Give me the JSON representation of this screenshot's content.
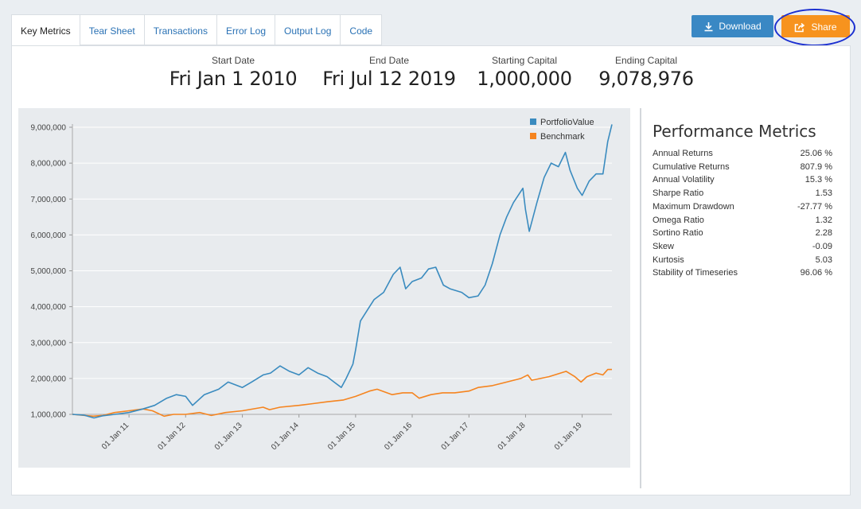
{
  "tabs": [
    {
      "label": "Key Metrics",
      "active": true
    },
    {
      "label": "Tear Sheet"
    },
    {
      "label": "Transactions"
    },
    {
      "label": "Error Log"
    },
    {
      "label": "Output Log"
    },
    {
      "label": "Code"
    }
  ],
  "buttons": {
    "download": "Download",
    "share": "Share"
  },
  "stats": [
    {
      "label": "Start Date",
      "value": "Fri Jan 1 2010"
    },
    {
      "label": "End Date",
      "value": "Fri Jul 12 2019"
    },
    {
      "label": "Starting Capital",
      "value": "1,000,000"
    },
    {
      "label": "Ending Capital",
      "value": "9,078,976"
    }
  ],
  "metrics": {
    "title": "Performance Metrics",
    "rows": [
      {
        "label": "Annual Returns",
        "value": "25.06 %"
      },
      {
        "label": "Cumulative Returns",
        "value": "807.9 %"
      },
      {
        "label": "Annual Volatility",
        "value": "15.3 %"
      },
      {
        "label": "Sharpe Ratio",
        "value": "1.53"
      },
      {
        "label": "Maximum Drawdown",
        "value": "-27.77 %"
      },
      {
        "label": "Omega Ratio",
        "value": "1.32"
      },
      {
        "label": "Sortino Ratio",
        "value": "2.28"
      },
      {
        "label": "Skew",
        "value": "-0.09"
      },
      {
        "label": "Kurtosis",
        "value": "5.03"
      },
      {
        "label": "Stability of Timeseries",
        "value": "96.06 %"
      }
    ]
  },
  "colors": {
    "portfolio": "#3a8bbf",
    "benchmark": "#f5841f",
    "share": "#f7931e",
    "download": "#3a88c4",
    "highlight": "#1b2fd0"
  },
  "icons": {
    "download": "download-icon",
    "share": "share-icon"
  },
  "chart_data": {
    "type": "line",
    "title": "",
    "xlabel": "",
    "ylabel": "",
    "xlim": [
      "2010-01-01",
      "2019-07-12"
    ],
    "ylim": [
      1000000,
      9000000
    ],
    "yticks": [
      1000000,
      2000000,
      3000000,
      4000000,
      5000000,
      6000000,
      7000000,
      8000000,
      9000000
    ],
    "ytick_labels": [
      "1,000,000",
      "2,000,000",
      "3,000,000",
      "4,000,000",
      "5,000,000",
      "6,000,000",
      "7,000,000",
      "8,000,000",
      "9,000,000"
    ],
    "xticks": [
      "2011-01-01",
      "2012-01-01",
      "2013-01-01",
      "2014-01-01",
      "2015-01-01",
      "2016-01-01",
      "2017-01-01",
      "2018-01-01",
      "2019-01-01"
    ],
    "xtick_labels": [
      "01 Jan 11",
      "01 Jan 12",
      "01 Jan 13",
      "01 Jan 14",
      "01 Jan 15",
      "01 Jan 16",
      "01 Jan 17",
      "01 Jan 18",
      "01 Jan 19"
    ],
    "grid": true,
    "legend": "top-right",
    "series": [
      {
        "name": "PortfolioValue",
        "color": "#3a8bbf",
        "points": [
          [
            "2010-01-01",
            1000000
          ],
          [
            "2010-03-15",
            980000
          ],
          [
            "2010-05-20",
            900000
          ],
          [
            "2010-07-15",
            960000
          ],
          [
            "2010-10-01",
            1000000
          ],
          [
            "2011-01-01",
            1050000
          ],
          [
            "2011-04-01",
            1150000
          ],
          [
            "2011-06-15",
            1250000
          ],
          [
            "2011-09-01",
            1450000
          ],
          [
            "2011-11-01",
            1550000
          ],
          [
            "2012-01-01",
            1500000
          ],
          [
            "2012-02-15",
            1250000
          ],
          [
            "2012-05-01",
            1550000
          ],
          [
            "2012-08-01",
            1700000
          ],
          [
            "2012-10-01",
            1900000
          ],
          [
            "2013-01-01",
            1750000
          ],
          [
            "2013-03-01",
            1900000
          ],
          [
            "2013-05-15",
            2100000
          ],
          [
            "2013-07-01",
            2150000
          ],
          [
            "2013-09-01",
            2350000
          ],
          [
            "2013-11-01",
            2200000
          ],
          [
            "2014-01-01",
            2100000
          ],
          [
            "2014-03-01",
            2300000
          ],
          [
            "2014-05-01",
            2150000
          ],
          [
            "2014-07-01",
            2050000
          ],
          [
            "2014-08-15",
            1900000
          ],
          [
            "2014-10-01",
            1750000
          ],
          [
            "2014-11-01",
            2000000
          ],
          [
            "2014-12-15",
            2400000
          ],
          [
            "2015-01-01",
            2800000
          ],
          [
            "2015-02-01",
            3600000
          ],
          [
            "2015-04-01",
            4000000
          ],
          [
            "2015-05-01",
            4200000
          ],
          [
            "2015-07-01",
            4400000
          ],
          [
            "2015-09-01",
            4900000
          ],
          [
            "2015-10-15",
            5100000
          ],
          [
            "2015-11-20",
            4500000
          ],
          [
            "2016-01-01",
            4700000
          ],
          [
            "2016-03-01",
            4800000
          ],
          [
            "2016-04-15",
            5050000
          ],
          [
            "2016-06-01",
            5100000
          ],
          [
            "2016-07-20",
            4600000
          ],
          [
            "2016-09-01",
            4500000
          ],
          [
            "2016-11-15",
            4400000
          ],
          [
            "2017-01-01",
            4250000
          ],
          [
            "2017-03-01",
            4300000
          ],
          [
            "2017-04-15",
            4600000
          ],
          [
            "2017-06-01",
            5200000
          ],
          [
            "2017-07-20",
            6000000
          ],
          [
            "2017-09-01",
            6500000
          ],
          [
            "2017-10-15",
            6900000
          ],
          [
            "2017-12-15",
            7300000
          ],
          [
            "2018-01-01",
            6700000
          ],
          [
            "2018-01-25",
            6100000
          ],
          [
            "2018-03-15",
            6900000
          ],
          [
            "2018-05-01",
            7600000
          ],
          [
            "2018-06-15",
            8000000
          ],
          [
            "2018-08-01",
            7900000
          ],
          [
            "2018-09-15",
            8300000
          ],
          [
            "2018-10-15",
            7800000
          ],
          [
            "2018-12-01",
            7300000
          ],
          [
            "2019-01-01",
            7100000
          ],
          [
            "2019-02-15",
            7500000
          ],
          [
            "2019-04-01",
            7700000
          ],
          [
            "2019-05-15",
            7700000
          ],
          [
            "2019-06-15",
            8600000
          ],
          [
            "2019-07-12",
            9078976
          ]
        ]
      },
      {
        "name": "Benchmark",
        "color": "#f5841f",
        "points": [
          [
            "2010-01-01",
            1000000
          ],
          [
            "2010-05-15",
            950000
          ],
          [
            "2010-07-15",
            970000
          ],
          [
            "2010-10-01",
            1050000
          ],
          [
            "2011-01-01",
            1100000
          ],
          [
            "2011-04-01",
            1150000
          ],
          [
            "2011-06-01",
            1100000
          ],
          [
            "2011-08-15",
            950000
          ],
          [
            "2011-10-15",
            1000000
          ],
          [
            "2012-01-01",
            1000000
          ],
          [
            "2012-04-01",
            1050000
          ],
          [
            "2012-06-15",
            970000
          ],
          [
            "2012-09-15",
            1050000
          ],
          [
            "2013-01-01",
            1100000
          ],
          [
            "2013-05-15",
            1200000
          ],
          [
            "2013-06-25",
            1130000
          ],
          [
            "2013-09-01",
            1200000
          ],
          [
            "2014-01-01",
            1250000
          ],
          [
            "2014-04-01",
            1300000
          ],
          [
            "2014-07-01",
            1350000
          ],
          [
            "2014-10-15",
            1400000
          ],
          [
            "2015-01-01",
            1500000
          ],
          [
            "2015-04-01",
            1650000
          ],
          [
            "2015-05-20",
            1700000
          ],
          [
            "2015-08-25",
            1550000
          ],
          [
            "2015-11-01",
            1600000
          ],
          [
            "2016-01-01",
            1600000
          ],
          [
            "2016-02-15",
            1450000
          ],
          [
            "2016-05-01",
            1550000
          ],
          [
            "2016-07-15",
            1600000
          ],
          [
            "2016-10-01",
            1600000
          ],
          [
            "2017-01-01",
            1650000
          ],
          [
            "2017-03-01",
            1750000
          ],
          [
            "2017-06-01",
            1800000
          ],
          [
            "2017-09-01",
            1900000
          ],
          [
            "2017-12-01",
            2000000
          ],
          [
            "2018-01-15",
            2100000
          ],
          [
            "2018-02-10",
            1950000
          ],
          [
            "2018-06-01",
            2050000
          ],
          [
            "2018-09-20",
            2200000
          ],
          [
            "2018-11-15",
            2050000
          ],
          [
            "2018-12-25",
            1900000
          ],
          [
            "2019-02-01",
            2050000
          ],
          [
            "2019-04-01",
            2150000
          ],
          [
            "2019-05-15",
            2100000
          ],
          [
            "2019-06-15",
            2250000
          ],
          [
            "2019-07-12",
            2250000
          ]
        ]
      }
    ]
  }
}
